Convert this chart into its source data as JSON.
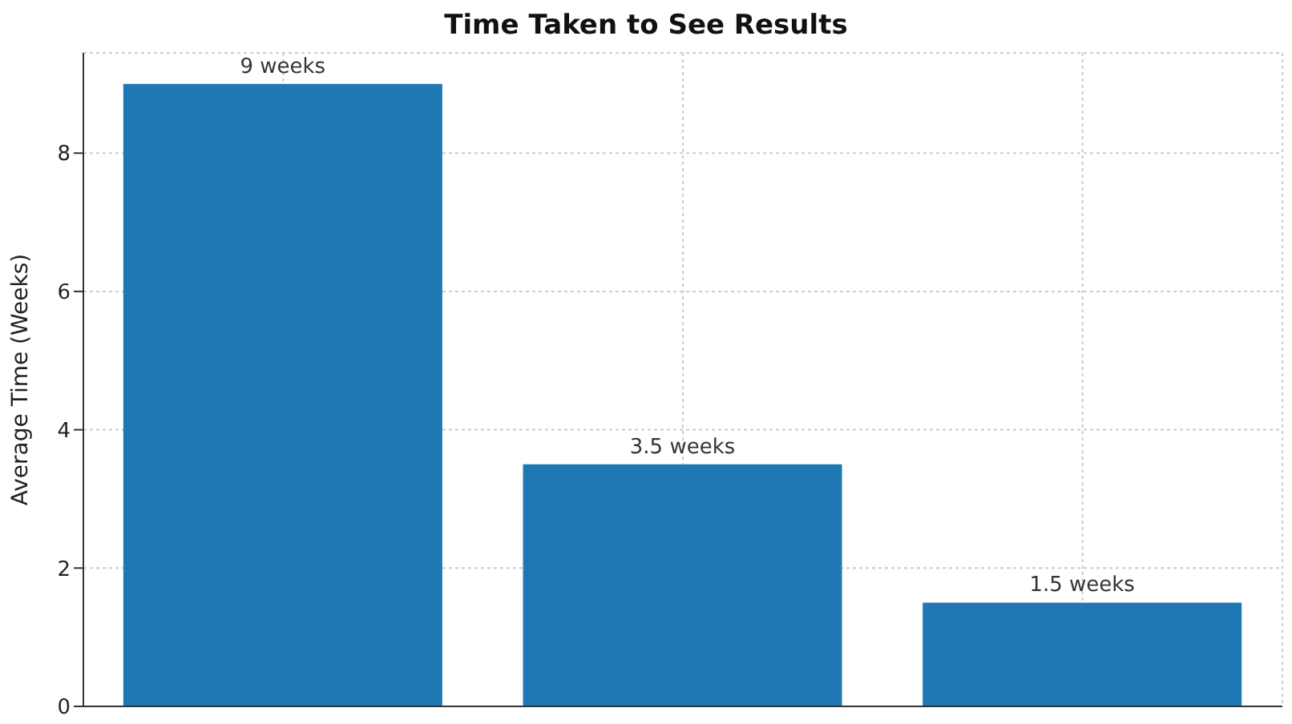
{
  "chart_data": {
    "type": "bar",
    "title": "Time Taken to See Results",
    "ylabel": "Average Time (Weeks)",
    "categories": [
      null,
      null,
      null
    ],
    "values": [
      9,
      3.5,
      1.5
    ],
    "value_labels": [
      "9 weeks",
      "3.5 weeks",
      "1.5 weeks"
    ],
    "color": "#1f77b4",
    "ylim": [
      0,
      9.45
    ],
    "yticks": [
      0,
      2,
      4,
      6,
      8
    ],
    "grid": true
  }
}
